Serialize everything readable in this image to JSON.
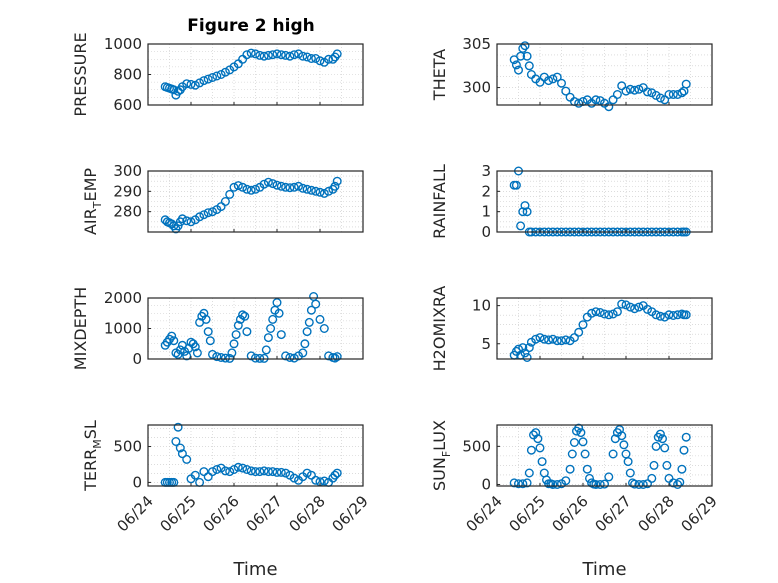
{
  "figure": {
    "title": "Figure 2 high",
    "marker_color": "#0072bd",
    "axis_color": "#262626",
    "grid_color": "#c8c8c8"
  },
  "chart_data": [
    {
      "type": "scatter",
      "title": "Figure 2 high",
      "ylabel": "PRESSURE",
      "xlabel": "",
      "xlim": [
        "06/24",
        "06/29"
      ],
      "ylim": [
        600,
        1000
      ],
      "yticks": [
        "600",
        "800",
        "1000"
      ],
      "xticks": [],
      "grid": true,
      "series": [
        {
          "x": [
            0.4,
            0.45,
            0.5,
            0.55,
            0.6,
            0.65,
            0.7,
            0.75,
            0.8,
            0.9,
            1.0,
            1.1,
            1.2,
            1.3,
            1.4,
            1.5,
            1.6,
            1.7,
            1.8,
            1.9,
            2.0,
            2.1,
            2.2,
            2.3,
            2.4,
            2.5,
            2.6,
            2.7,
            2.8,
            2.9,
            3.0,
            3.1,
            3.2,
            3.3,
            3.4,
            3.5,
            3.6,
            3.7,
            3.8,
            3.9,
            4.0,
            4.1,
            4.2,
            4.3,
            4.35,
            4.4
          ],
          "y": [
            720,
            715,
            710,
            705,
            700,
            665,
            690,
            700,
            720,
            740,
            735,
            730,
            745,
            760,
            770,
            780,
            790,
            800,
            815,
            830,
            850,
            870,
            900,
            930,
            940,
            935,
            925,
            920,
            925,
            930,
            935,
            930,
            925,
            920,
            930,
            935,
            920,
            915,
            905,
            905,
            890,
            880,
            900,
            900,
            915,
            935
          ]
        }
      ]
    },
    {
      "type": "scatter",
      "title": "",
      "ylabel": "THETA",
      "xlabel": "",
      "xlim": [
        "06/24",
        "06/29"
      ],
      "ylim": [
        298,
        305
      ],
      "yticks": [
        "300",
        "305"
      ],
      "xticks": [],
      "grid": true,
      "series": [
        {
          "x": [
            0.4,
            0.45,
            0.5,
            0.55,
            0.6,
            0.65,
            0.7,
            0.75,
            0.8,
            0.9,
            1.0,
            1.1,
            1.2,
            1.3,
            1.4,
            1.5,
            1.6,
            1.7,
            1.8,
            1.9,
            2.0,
            2.1,
            2.2,
            2.3,
            2.4,
            2.5,
            2.6,
            2.7,
            2.8,
            2.9,
            3.0,
            3.1,
            3.2,
            3.3,
            3.4,
            3.5,
            3.6,
            3.7,
            3.8,
            3.9,
            4.0,
            4.1,
            4.2,
            4.3,
            4.35,
            4.4
          ],
          "y": [
            303.2,
            302.6,
            302.0,
            303.6,
            304.5,
            304.8,
            303.6,
            302.5,
            301.5,
            301.0,
            300.6,
            301.2,
            300.8,
            301.0,
            301.2,
            300.5,
            299.6,
            298.9,
            298.4,
            298.2,
            298.4,
            298.6,
            298.2,
            298.6,
            298.5,
            298.2,
            297.8,
            298.6,
            299.2,
            300.2,
            299.6,
            299.8,
            299.7,
            299.8,
            300.0,
            299.5,
            299.4,
            299.1,
            298.8,
            298.6,
            299.2,
            299.2,
            299.2,
            299.4,
            299.6,
            300.4
          ]
        }
      ]
    },
    {
      "type": "scatter",
      "title": "",
      "ylabel": "AIR_TEMP",
      "xlabel": "",
      "xlim": [
        "06/24",
        "06/29"
      ],
      "ylim": [
        270,
        300
      ],
      "yticks": [
        "280",
        "290",
        "300"
      ],
      "xticks": [],
      "grid": true,
      "series": [
        {
          "x": [
            0.4,
            0.45,
            0.5,
            0.55,
            0.6,
            0.65,
            0.7,
            0.75,
            0.8,
            0.9,
            1.0,
            1.1,
            1.2,
            1.3,
            1.4,
            1.5,
            1.6,
            1.7,
            1.8,
            1.9,
            2.0,
            2.1,
            2.2,
            2.3,
            2.4,
            2.5,
            2.6,
            2.7,
            2.8,
            2.9,
            3.0,
            3.1,
            3.2,
            3.3,
            3.4,
            3.5,
            3.6,
            3.7,
            3.8,
            3.9,
            4.0,
            4.1,
            4.2,
            4.3,
            4.35,
            4.4
          ],
          "y": [
            276,
            275,
            274.5,
            274,
            273,
            271.5,
            273,
            275,
            276.5,
            275.5,
            275,
            276,
            277.5,
            278.5,
            279.5,
            280,
            281,
            282.5,
            285,
            288.5,
            292,
            292.8,
            292,
            291,
            290.5,
            291,
            292,
            293.5,
            294.5,
            293.8,
            293,
            292.5,
            292,
            291.8,
            292,
            292.5,
            291.5,
            291,
            290.5,
            290,
            289.5,
            289,
            290,
            291,
            292.5,
            295
          ]
        }
      ]
    },
    {
      "type": "scatter",
      "title": "",
      "ylabel": "RAINFALL",
      "xlabel": "",
      "xlim": [
        "06/24",
        "06/29"
      ],
      "ylim": [
        0,
        3
      ],
      "yticks": [
        "0",
        "1",
        "2",
        "3"
      ],
      "xticks": [],
      "grid": true,
      "series": [
        {
          "x": [
            0.4,
            0.45,
            0.5,
            0.55,
            0.6,
            0.65,
            0.7,
            0.75,
            0.8,
            0.9,
            1.0,
            1.1,
            1.2,
            1.3,
            1.4,
            1.5,
            1.6,
            1.7,
            1.8,
            1.9,
            2.0,
            2.1,
            2.2,
            2.3,
            2.4,
            2.5,
            2.6,
            2.7,
            2.8,
            2.9,
            3.0,
            3.1,
            3.2,
            3.3,
            3.4,
            3.5,
            3.6,
            3.7,
            3.8,
            3.9,
            4.0,
            4.1,
            4.2,
            4.3,
            4.35,
            4.4
          ],
          "y": [
            2.3,
            2.3,
            3.0,
            0.3,
            1.0,
            1.3,
            1.0,
            0,
            0,
            0,
            0,
            0,
            0,
            0,
            0,
            0,
            0,
            0,
            0,
            0,
            0,
            0,
            0,
            0,
            0,
            0,
            0,
            0,
            0,
            0,
            0,
            0,
            0,
            0,
            0,
            0,
            0,
            0,
            0,
            0,
            0,
            0,
            0,
            0,
            0,
            0
          ]
        }
      ]
    },
    {
      "type": "scatter",
      "title": "",
      "ylabel": "MIXDEPTH",
      "xlabel": "",
      "xlim": [
        "06/24",
        "06/29"
      ],
      "ylim": [
        0,
        2000
      ],
      "yticks": [
        "0",
        "1000",
        "2000"
      ],
      "xticks": [],
      "grid": true,
      "series": [
        {
          "x": [
            0.4,
            0.45,
            0.5,
            0.55,
            0.6,
            0.65,
            0.7,
            0.75,
            0.8,
            0.85,
            0.9,
            0.95,
            1.0,
            1.05,
            1.1,
            1.15,
            1.2,
            1.25,
            1.3,
            1.35,
            1.4,
            1.45,
            1.5,
            1.6,
            1.7,
            1.8,
            1.9,
            1.95,
            2.0,
            2.05,
            2.1,
            2.15,
            2.2,
            2.25,
            2.3,
            2.4,
            2.5,
            2.6,
            2.7,
            2.75,
            2.8,
            2.85,
            2.9,
            2.95,
            3.0,
            3.05,
            3.1,
            3.2,
            3.3,
            3.4,
            3.5,
            3.6,
            3.65,
            3.7,
            3.75,
            3.8,
            3.85,
            3.9,
            4.0,
            4.1,
            4.2,
            4.3,
            4.35,
            4.4
          ],
          "y": [
            450,
            550,
            650,
            750,
            600,
            200,
            150,
            300,
            450,
            250,
            100,
            350,
            550,
            500,
            400,
            200,
            1200,
            1400,
            1500,
            1300,
            900,
            600,
            150,
            80,
            50,
            30,
            20,
            200,
            500,
            800,
            1100,
            1300,
            1450,
            1400,
            900,
            100,
            30,
            20,
            20,
            300,
            700,
            1000,
            1300,
            1600,
            1850,
            1500,
            800,
            100,
            50,
            30,
            100,
            200,
            500,
            900,
            1200,
            1600,
            2050,
            1800,
            1300,
            1000,
            100,
            50,
            30,
            80
          ]
        }
      ]
    },
    {
      "type": "scatter",
      "title": "",
      "ylabel": "H2OMIXRA",
      "xlabel": "",
      "xlim": [
        "06/24",
        "06/29"
      ],
      "ylim": [
        3,
        11
      ],
      "yticks": [
        "5",
        "10"
      ],
      "xticks": [],
      "grid": true,
      "series": [
        {
          "x": [
            0.4,
            0.45,
            0.5,
            0.55,
            0.6,
            0.65,
            0.7,
            0.75,
            0.8,
            0.9,
            1.0,
            1.1,
            1.2,
            1.3,
            1.4,
            1.5,
            1.6,
            1.7,
            1.8,
            1.9,
            2.0,
            2.1,
            2.2,
            2.3,
            2.4,
            2.5,
            2.6,
            2.7,
            2.8,
            2.9,
            3.0,
            3.1,
            3.2,
            3.3,
            3.4,
            3.5,
            3.6,
            3.7,
            3.8,
            3.9,
            4.0,
            4.1,
            4.2,
            4.3,
            4.35,
            4.4
          ],
          "y": [
            3.5,
            4.0,
            4.3,
            3.5,
            4.5,
            3.8,
            3.2,
            4.5,
            5.2,
            5.6,
            5.8,
            5.6,
            5.5,
            5.6,
            5.4,
            5.4,
            5.5,
            5.4,
            5.8,
            6.5,
            7.5,
            8.5,
            9.0,
            9.2,
            9.1,
            8.9,
            8.8,
            8.9,
            9.2,
            10.2,
            10.1,
            9.8,
            9.6,
            9.8,
            10.0,
            9.5,
            9.2,
            8.8,
            8.6,
            8.5,
            8.8,
            8.7,
            8.8,
            8.9,
            8.8,
            8.8
          ]
        }
      ]
    },
    {
      "type": "scatter",
      "title": "",
      "ylabel": "TERR_MSL",
      "xlabel": "Time",
      "xlim": [
        "06/24",
        "06/29"
      ],
      "ylim": [
        -50,
        800
      ],
      "yticks": [
        "0",
        "500"
      ],
      "xticks": [
        "06/24",
        "06/25",
        "06/26",
        "06/27",
        "06/28",
        "06/29"
      ],
      "grid": true,
      "series": [
        {
          "x": [
            0.4,
            0.45,
            0.5,
            0.55,
            0.6,
            0.65,
            0.7,
            0.75,
            0.8,
            0.9,
            1.0,
            1.1,
            1.2,
            1.3,
            1.4,
            1.5,
            1.6,
            1.7,
            1.8,
            1.9,
            2.0,
            2.1,
            2.2,
            2.3,
            2.4,
            2.5,
            2.6,
            2.7,
            2.8,
            2.9,
            3.0,
            3.1,
            3.2,
            3.3,
            3.4,
            3.5,
            3.6,
            3.7,
            3.8,
            3.9,
            4.0,
            4.1,
            4.2,
            4.3,
            4.35,
            4.4
          ],
          "y": [
            0,
            0,
            0,
            0,
            0,
            570,
            770,
            480,
            400,
            320,
            50,
            100,
            0,
            150,
            80,
            150,
            180,
            200,
            160,
            150,
            180,
            210,
            200,
            180,
            160,
            150,
            150,
            160,
            150,
            150,
            140,
            140,
            130,
            100,
            60,
            30,
            80,
            130,
            100,
            30,
            10,
            20,
            0,
            60,
            100,
            130
          ]
        }
      ]
    },
    {
      "type": "scatter",
      "title": "",
      "ylabel": "SUN_FLUX",
      "xlabel": "Time",
      "xlim": [
        "06/24",
        "06/29"
      ],
      "ylim": [
        -20,
        780
      ],
      "yticks": [
        "0",
        "500"
      ],
      "xticks": [
        "06/24",
        "06/25",
        "06/26",
        "06/27",
        "06/28",
        "06/29"
      ],
      "grid": true,
      "series": [
        {
          "x": [
            0.4,
            0.5,
            0.6,
            0.7,
            0.75,
            0.8,
            0.85,
            0.9,
            0.95,
            1.0,
            1.05,
            1.1,
            1.15,
            1.2,
            1.25,
            1.3,
            1.4,
            1.5,
            1.6,
            1.7,
            1.75,
            1.8,
            1.85,
            1.9,
            1.95,
            2.0,
            2.05,
            2.1,
            2.15,
            2.2,
            2.25,
            2.3,
            2.4,
            2.5,
            2.6,
            2.7,
            2.75,
            2.8,
            2.85,
            2.9,
            2.95,
            3.0,
            3.05,
            3.1,
            3.15,
            3.2,
            3.3,
            3.4,
            3.5,
            3.6,
            3.65,
            3.7,
            3.75,
            3.8,
            3.85,
            3.9,
            3.95,
            4.0,
            4.1,
            4.2,
            4.25,
            4.3,
            4.35,
            4.4
          ],
          "y": [
            20,
            10,
            10,
            20,
            150,
            450,
            650,
            680,
            600,
            480,
            300,
            150,
            60,
            10,
            10,
            0,
            0,
            10,
            50,
            200,
            400,
            550,
            700,
            740,
            680,
            560,
            400,
            200,
            80,
            20,
            5,
            0,
            0,
            5,
            100,
            400,
            600,
            680,
            720,
            640,
            520,
            400,
            300,
            150,
            20,
            5,
            0,
            0,
            10,
            80,
            250,
            500,
            620,
            660,
            600,
            480,
            250,
            80,
            20,
            0,
            30,
            200,
            450,
            620
          ]
        }
      ]
    }
  ]
}
